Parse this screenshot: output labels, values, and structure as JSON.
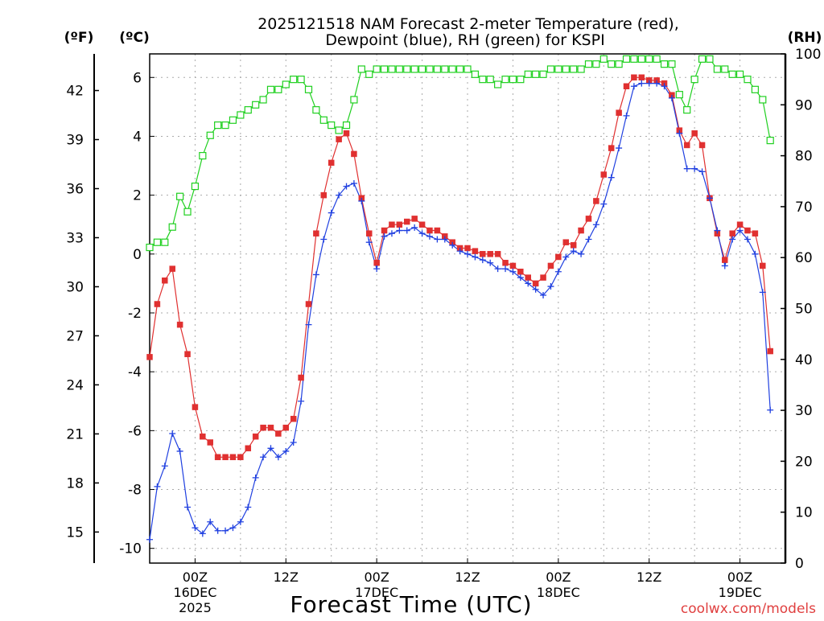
{
  "chart_data": {
    "type": "line",
    "title_line1": "2025121518 NAM Forecast 2-meter Temperature (red),",
    "title_line2": "Dewpoint (blue), RH (green) for KSPI",
    "xlabel": "Forecast Time (UTC)",
    "credit": "coolwx.com/models",
    "axis_units": {
      "fahrenheit": "(ºF)",
      "celsius": "(ºC)",
      "rh": "(RH)"
    },
    "x_hours_start": -6,
    "x_hours_end": 78,
    "y_celsius_lim": [
      -10.5,
      6.8
    ],
    "rh_lim": [
      0,
      100
    ],
    "x_tick_labels": [
      {
        "hour": 0,
        "time": "00Z",
        "day": "16DEC",
        "year": "2025"
      },
      {
        "hour": 12,
        "time": "12Z",
        "day": "",
        "year": ""
      },
      {
        "hour": 24,
        "time": "00Z",
        "day": "17DEC",
        "year": ""
      },
      {
        "hour": 36,
        "time": "12Z",
        "day": "",
        "year": ""
      },
      {
        "hour": 48,
        "time": "00Z",
        "day": "18DEC",
        "year": ""
      },
      {
        "hour": 60,
        "time": "12Z",
        "day": "",
        "year": ""
      },
      {
        "hour": 72,
        "time": "00Z",
        "day": "19DEC",
        "year": ""
      }
    ],
    "celsius_ticks": [
      "6",
      "4",
      "2",
      "0",
      "-2",
      "-4",
      "-6",
      "-8",
      "-10"
    ],
    "fahrenheit_ticks": [
      "42",
      "39",
      "36",
      "33",
      "30",
      "27",
      "24",
      "21",
      "18",
      "15"
    ],
    "rh_ticks": [
      "100",
      "90",
      "80",
      "70",
      "60",
      "50",
      "40",
      "30",
      "20",
      "10",
      "0"
    ],
    "colors": {
      "temperature": "#e03030",
      "dewpoint": "#2040e0",
      "rh": "#20d020",
      "credit": "#e04040",
      "grid": "#aaaaaa"
    },
    "series": [
      {
        "name": "Temperature (ºC)",
        "values": [
          -3.5,
          -1.7,
          -0.9,
          -0.5,
          -2.4,
          -3.4,
          -5.2,
          -6.2,
          -6.4,
          -6.9,
          -6.9,
          -6.9,
          -6.9,
          -6.6,
          -6.2,
          -5.9,
          -5.9,
          -6.1,
          -5.9,
          -5.6,
          -4.2,
          -1.7,
          0.7,
          2.0,
          3.1,
          3.9,
          4.1,
          3.4,
          1.9,
          0.7,
          -0.3,
          0.8,
          1.0,
          1.0,
          1.1,
          1.2,
          1.0,
          0.8,
          0.8,
          0.6,
          0.4,
          0.2,
          0.2,
          0.1,
          0.0,
          0.0,
          0.0,
          -0.3,
          -0.4,
          -0.6,
          -0.8,
          -1.0,
          -0.8,
          -0.4,
          -0.1,
          0.4,
          0.3,
          0.8,
          1.2,
          1.8,
          2.7,
          3.6,
          4.8,
          5.7,
          6.0,
          6.0,
          5.9,
          5.9,
          5.8,
          5.4,
          4.2,
          3.7,
          4.1,
          3.7,
          1.9,
          0.7,
          -0.2,
          0.7,
          1.0,
          0.8,
          0.7,
          -0.4,
          -3.3
        ]
      },
      {
        "name": "Dewpoint (ºC)",
        "values": [
          -9.7,
          -7.9,
          -7.2,
          -6.1,
          -6.7,
          -8.6,
          -9.3,
          -9.5,
          -9.1,
          -9.4,
          -9.4,
          -9.3,
          -9.1,
          -8.6,
          -7.6,
          -6.9,
          -6.6,
          -6.9,
          -6.7,
          -6.4,
          -5.0,
          -2.4,
          -0.7,
          0.5,
          1.4,
          2.0,
          2.3,
          2.4,
          1.8,
          0.4,
          -0.5,
          0.6,
          0.7,
          0.8,
          0.8,
          0.9,
          0.7,
          0.6,
          0.5,
          0.5,
          0.3,
          0.1,
          0.0,
          -0.1,
          -0.2,
          -0.3,
          -0.5,
          -0.5,
          -0.6,
          -0.8,
          -1.0,
          -1.2,
          -1.4,
          -1.1,
          -0.6,
          -0.1,
          0.1,
          0.0,
          0.5,
          1.0,
          1.7,
          2.6,
          3.6,
          4.7,
          5.7,
          5.8,
          5.8,
          5.8,
          5.7,
          5.3,
          4.1,
          2.9,
          2.9,
          2.8,
          1.9,
          0.8,
          -0.4,
          0.5,
          0.8,
          0.5,
          0.0,
          -1.3,
          -5.3
        ]
      },
      {
        "name": "RH (%)",
        "values": [
          62,
          63,
          63,
          66,
          72,
          69,
          74,
          80,
          84,
          86,
          86,
          87,
          88,
          89,
          90,
          91,
          93,
          93,
          94,
          95,
          95,
          93,
          89,
          87,
          86,
          85,
          86,
          91,
          97,
          96,
          97,
          97,
          97,
          97,
          97,
          97,
          97,
          97,
          97,
          97,
          97,
          97,
          97,
          96,
          95,
          95,
          94,
          95,
          95,
          95,
          96,
          96,
          96,
          97,
          97,
          97,
          97,
          97,
          98,
          98,
          99,
          98,
          98,
          99,
          99,
          99,
          99,
          99,
          98,
          98,
          92,
          89,
          95,
          99,
          99,
          97,
          97,
          96,
          96,
          95,
          93,
          91,
          83
        ]
      }
    ]
  }
}
